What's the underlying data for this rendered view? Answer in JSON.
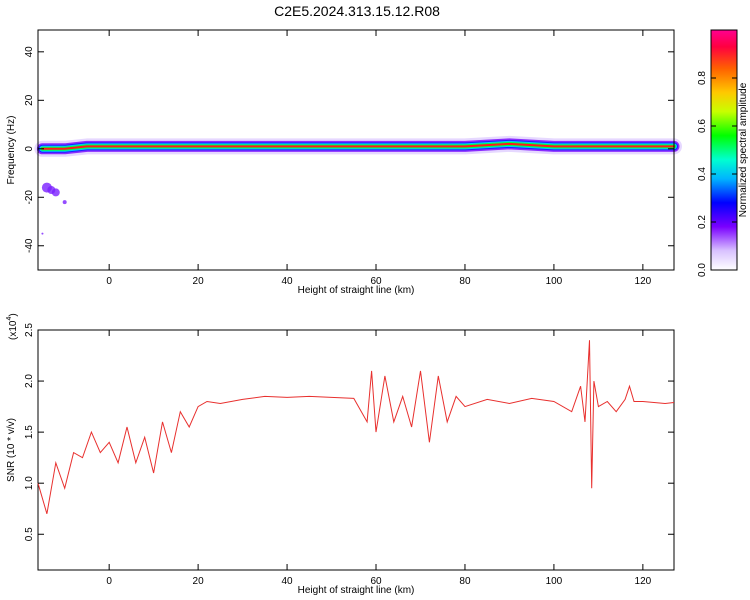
{
  "title": "C2E5.2024.313.15.12.R08",
  "chart_data": [
    {
      "type": "heatmap",
      "xlabel": "Height of straight line (km)",
      "ylabel": "Frequency (Hz)",
      "xlim": [
        -16,
        127
      ],
      "ylim": [
        -50,
        49
      ],
      "xticks": [
        0,
        20,
        40,
        60,
        80,
        100,
        120
      ],
      "yticks": [
        -40,
        -20,
        0,
        20,
        40
      ],
      "grid": false,
      "colorbar": {
        "label": "Normalized spectral amplitude",
        "range": [
          0,
          1
        ],
        "ticks": [
          0.0,
          0.2,
          0.4,
          0.6,
          0.8
        ]
      },
      "band_center_hz": [
        [
          -15,
          0
        ],
        [
          -10,
          0
        ],
        [
          -5,
          1
        ],
        [
          0,
          1
        ],
        [
          10,
          1
        ],
        [
          20,
          1
        ],
        [
          40,
          1
        ],
        [
          60,
          1
        ],
        [
          80,
          1
        ],
        [
          90,
          2
        ],
        [
          100,
          1
        ],
        [
          110,
          1
        ],
        [
          127,
          1
        ]
      ]
    },
    {
      "type": "line",
      "xlabel": "Height of straight line (km)",
      "ylabel": "SNR (10 * v/v)",
      "y_multiplier": "(x10",
      "y_multiplier_exp": "4",
      "y_multiplier_close": ")",
      "xlim": [
        -16,
        127
      ],
      "ylim": [
        0.15,
        2.5
      ],
      "xticks": [
        0,
        20,
        40,
        60,
        80,
        100,
        120
      ],
      "yticks": [
        0.5,
        1.0,
        1.5,
        2.0,
        2.5
      ],
      "grid": false,
      "series": [
        {
          "color": "#e8302e",
          "x": [
            -16,
            -14,
            -12,
            -10,
            -8,
            -6,
            -4,
            -2,
            0,
            2,
            4,
            6,
            8,
            10,
            12,
            14,
            16,
            18,
            20,
            22,
            25,
            30,
            35,
            40,
            45,
            50,
            55,
            58,
            59,
            60,
            62,
            64,
            66,
            68,
            70,
            72,
            74,
            76,
            78,
            80,
            85,
            90,
            95,
            100,
            104,
            106,
            107,
            108,
            108.5,
            109,
            110,
            112,
            114,
            116,
            117,
            118,
            120,
            125,
            127
          ],
          "y": [
            1.0,
            0.7,
            1.2,
            0.95,
            1.3,
            1.25,
            1.5,
            1.3,
            1.4,
            1.2,
            1.55,
            1.2,
            1.45,
            1.1,
            1.6,
            1.3,
            1.7,
            1.55,
            1.75,
            1.8,
            1.78,
            1.82,
            1.85,
            1.84,
            1.85,
            1.84,
            1.83,
            1.6,
            2.1,
            1.5,
            2.05,
            1.6,
            1.85,
            1.55,
            2.1,
            1.4,
            2.05,
            1.6,
            1.85,
            1.75,
            1.82,
            1.78,
            1.83,
            1.8,
            1.7,
            1.95,
            1.6,
            2.4,
            0.95,
            2.0,
            1.75,
            1.8,
            1.7,
            1.82,
            1.95,
            1.8,
            1.8,
            1.78,
            1.79
          ]
        }
      ]
    }
  ]
}
